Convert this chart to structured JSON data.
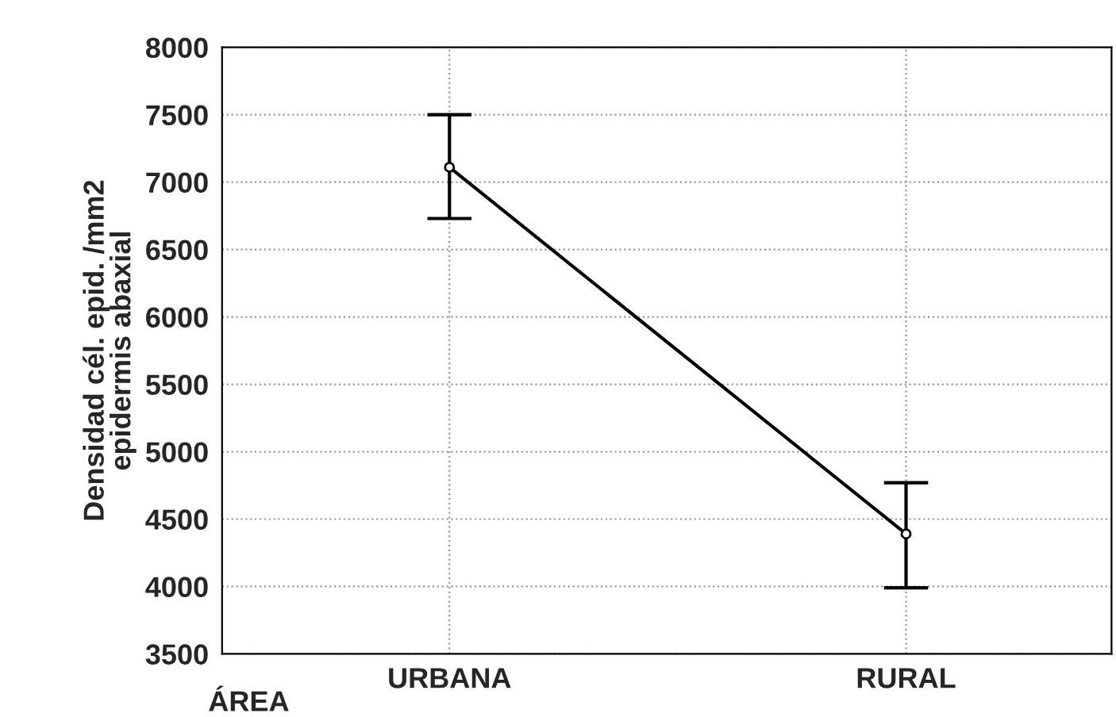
{
  "chart_data": {
    "type": "line",
    "xlabel": "ÁREA",
    "ylabel": "Densidad cél. epid. /mm2\nepidermis abaxial",
    "categories": [
      "URBANA",
      "RURAL"
    ],
    "series": [
      {
        "color": "#000000",
        "values": [
          7110,
          4390
        ],
        "errors": [
          [
            6730,
            7500
          ],
          [
            3990,
            4770
          ]
        ]
      }
    ],
    "ylim": [
      3500,
      8000
    ],
    "yticks": [
      3500,
      4000,
      4500,
      5000,
      5500,
      6000,
      6500,
      7000,
      7500,
      8000
    ],
    "grid": true,
    "marker": "circle",
    "line_style": "solid"
  }
}
